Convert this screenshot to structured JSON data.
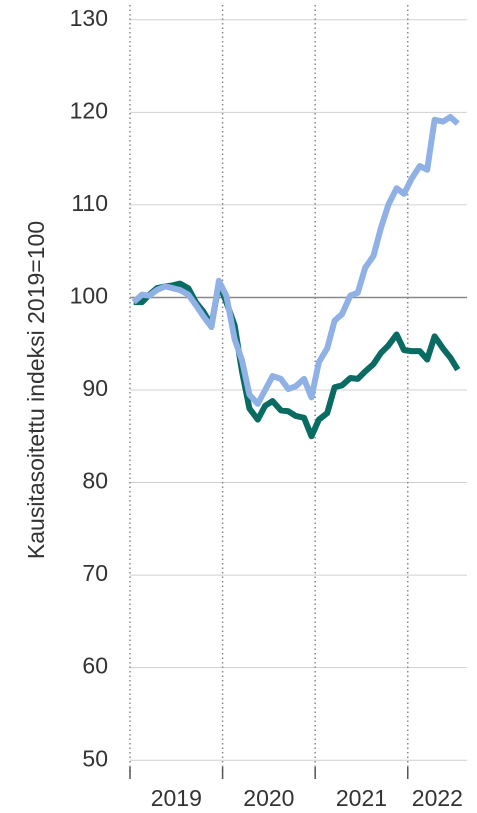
{
  "chart_data": {
    "type": "line",
    "y_label": "Kausitasoitettu indeksi 2019=100",
    "x": [
      2019.04,
      2019.13,
      2019.21,
      2019.29,
      2019.38,
      2019.46,
      2019.54,
      2019.63,
      2019.71,
      2019.79,
      2019.88,
      2019.96,
      2020.04,
      2020.13,
      2020.21,
      2020.29,
      2020.38,
      2020.46,
      2020.54,
      2020.63,
      2020.71,
      2020.79,
      2020.88,
      2020.96,
      2021.04,
      2021.13,
      2021.21,
      2021.29,
      2021.38,
      2021.46,
      2021.54,
      2021.63,
      2021.71,
      2021.79,
      2021.88,
      2021.96,
      2022.04,
      2022.13,
      2022.21,
      2022.29,
      2022.38,
      2022.46,
      2022.54
    ],
    "series": [
      {
        "color": "#0a6b63",
        "values": [
          99.5,
          99.5,
          100.3,
          101,
          101.2,
          101.3,
          101.5,
          101,
          99.5,
          98.5,
          97,
          101.5,
          99.5,
          97,
          92,
          88,
          86.8,
          88.3,
          88.8,
          87.8,
          87.7,
          87.2,
          87,
          85,
          86.8,
          87.5,
          90.3,
          90.5,
          91.3,
          91.2,
          92,
          92.8,
          94,
          94.8,
          96,
          94.3,
          94.2,
          94.2,
          93.3,
          95.8,
          94.5,
          93.5,
          92.2
        ]
      },
      {
        "color": "#8fb1e6",
        "values": [
          99.5,
          100.3,
          100.2,
          100.8,
          101.2,
          101,
          100.8,
          100.3,
          99.2,
          98,
          96.8,
          101.8,
          100.2,
          95.5,
          93.2,
          89.5,
          88.5,
          90,
          91.5,
          91.2,
          90.1,
          90.4,
          91.2,
          89.2,
          93,
          94.5,
          97.5,
          98.2,
          100.2,
          100.5,
          103.2,
          104.5,
          107.5,
          110,
          111.8,
          111.2,
          112.8,
          114.2,
          113.8,
          119.2,
          119,
          119.5,
          118.8
        ]
      }
    ],
    "xlim": [
      2019,
      2022.64
    ],
    "xticks": [
      2019,
      2020,
      2021,
      2022
    ],
    "ylim": [
      48.4,
      131.6
    ],
    "yticks": [
      50,
      60,
      70,
      80,
      90,
      100,
      110,
      120,
      130
    ],
    "baseline": 100,
    "grid": true
  }
}
